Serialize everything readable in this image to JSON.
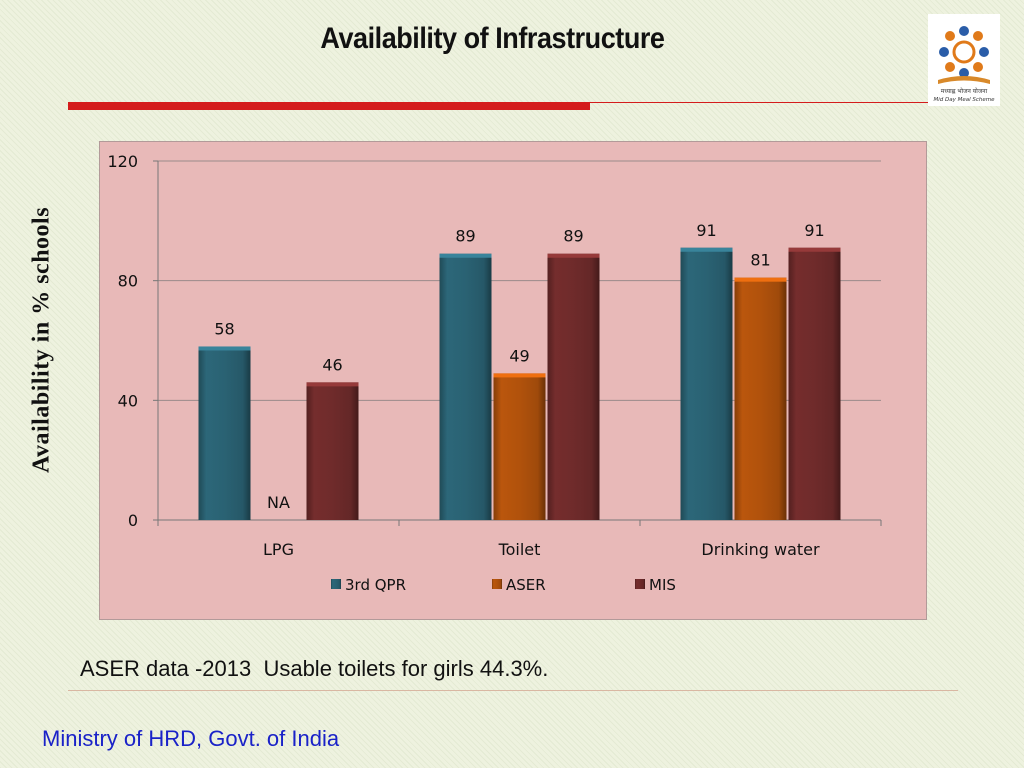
{
  "slide": {
    "title": "Availability of Infrastructure",
    "logo_text": "मध्याह्न भोजन योजना",
    "logo_subtitle": "Mid Day Meal Scheme",
    "note": "ASER data -2013  Usable toilets for girls 44.3%.",
    "footer": "Ministry of HRD, Govt. of India",
    "colors": {
      "title_rule": "#d41c1c",
      "chart_background": "#e8b9b8",
      "footer_text": "#1a22c8"
    }
  },
  "chart_data": {
    "type": "bar",
    "title": "",
    "xlabel": "",
    "ylabel": "Availability in % schools",
    "ylim": [
      0,
      120
    ],
    "yticks": [
      "0",
      "40",
      "80",
      "120"
    ],
    "ytick_values": [
      0,
      40,
      80,
      120
    ],
    "categories": [
      "LPG",
      "Toilet",
      "Drinking water"
    ],
    "series": [
      {
        "name": "3rd QPR",
        "color": "#2a6273",
        "values": [
          58,
          89,
          91
        ],
        "labels": [
          "58",
          "89",
          "91"
        ]
      },
      {
        "name": "ASER",
        "color": "#b1520c",
        "values": [
          null,
          49,
          81
        ],
        "labels": [
          "NA",
          "49",
          "81"
        ]
      },
      {
        "name": "MIS",
        "color": "#6f2b2b",
        "values": [
          46,
          89,
          91
        ],
        "labels": [
          "46",
          "89",
          "91"
        ]
      }
    ],
    "grid": true,
    "legend_position": "bottom"
  }
}
